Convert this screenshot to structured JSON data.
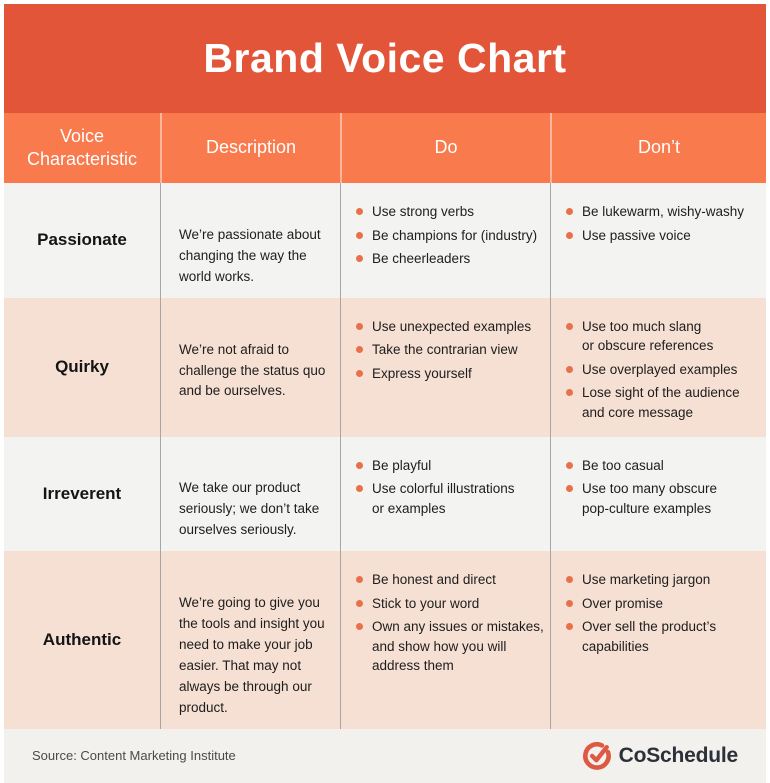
{
  "title": "Brand Voice Chart",
  "chart_data": {
    "type": "table",
    "title": "Brand Voice Chart",
    "columns": [
      "Voice Characteristic",
      "Description",
      "Do",
      "Don’t"
    ],
    "rows": [
      {
        "characteristic": "Passionate",
        "description": "We’re passionate about\nchanging the way the\nworld works.",
        "do": [
          "Use strong verbs",
          "Be champions for (industry)",
          "Be cheerleaders"
        ],
        "dont": [
          "Be lukewarm, wishy-washy",
          "Use passive voice"
        ]
      },
      {
        "characteristic": "Quirky",
        "description": "We’re not afraid to\nchallenge the status quo\nand be ourselves.",
        "do": [
          "Use unexpected examples",
          "Take the contrarian view",
          "Express yourself"
        ],
        "dont": [
          "Use too much slang\nor obscure references",
          "Use overplayed examples",
          "Lose sight of the audience\nand core message"
        ]
      },
      {
        "characteristic": "Irreverent",
        "description": "We take our product\nseriously; we don’t take\nourselves seriously.",
        "do": [
          "Be playful",
          "Use colorful illustrations\nor examples"
        ],
        "dont": [
          "Be too casual",
          "Use too many obscure\npop-culture examples"
        ]
      },
      {
        "characteristic": "Authentic",
        "description": "We’re going to give you\nthe tools and insight you\nneed to make your job\neasier. That may not\nalways be through our\nproduct.",
        "do": [
          "Be honest and direct",
          "Stick to your word",
          "Own any issues or mistakes,\nand show how you will\naddress them"
        ],
        "dont": [
          "Use marketing jargon",
          "Over promise",
          "Over sell the product’s\ncapabilities"
        ]
      }
    ]
  },
  "footer": {
    "source": "Source: Content Marketing Institute",
    "brand": "CoSchedule"
  },
  "colors": {
    "banner_bg": "#E25539",
    "header_bg": "#F97A4D",
    "row_light": "#F3F4F1",
    "row_peach": "#F6E0D3",
    "bullet": "#E8714B",
    "divider": "#A6A6A6",
    "footer_bg": "#F2F1ED",
    "logo_coral": "#DE5941",
    "logo_text": "#2C3038"
  }
}
